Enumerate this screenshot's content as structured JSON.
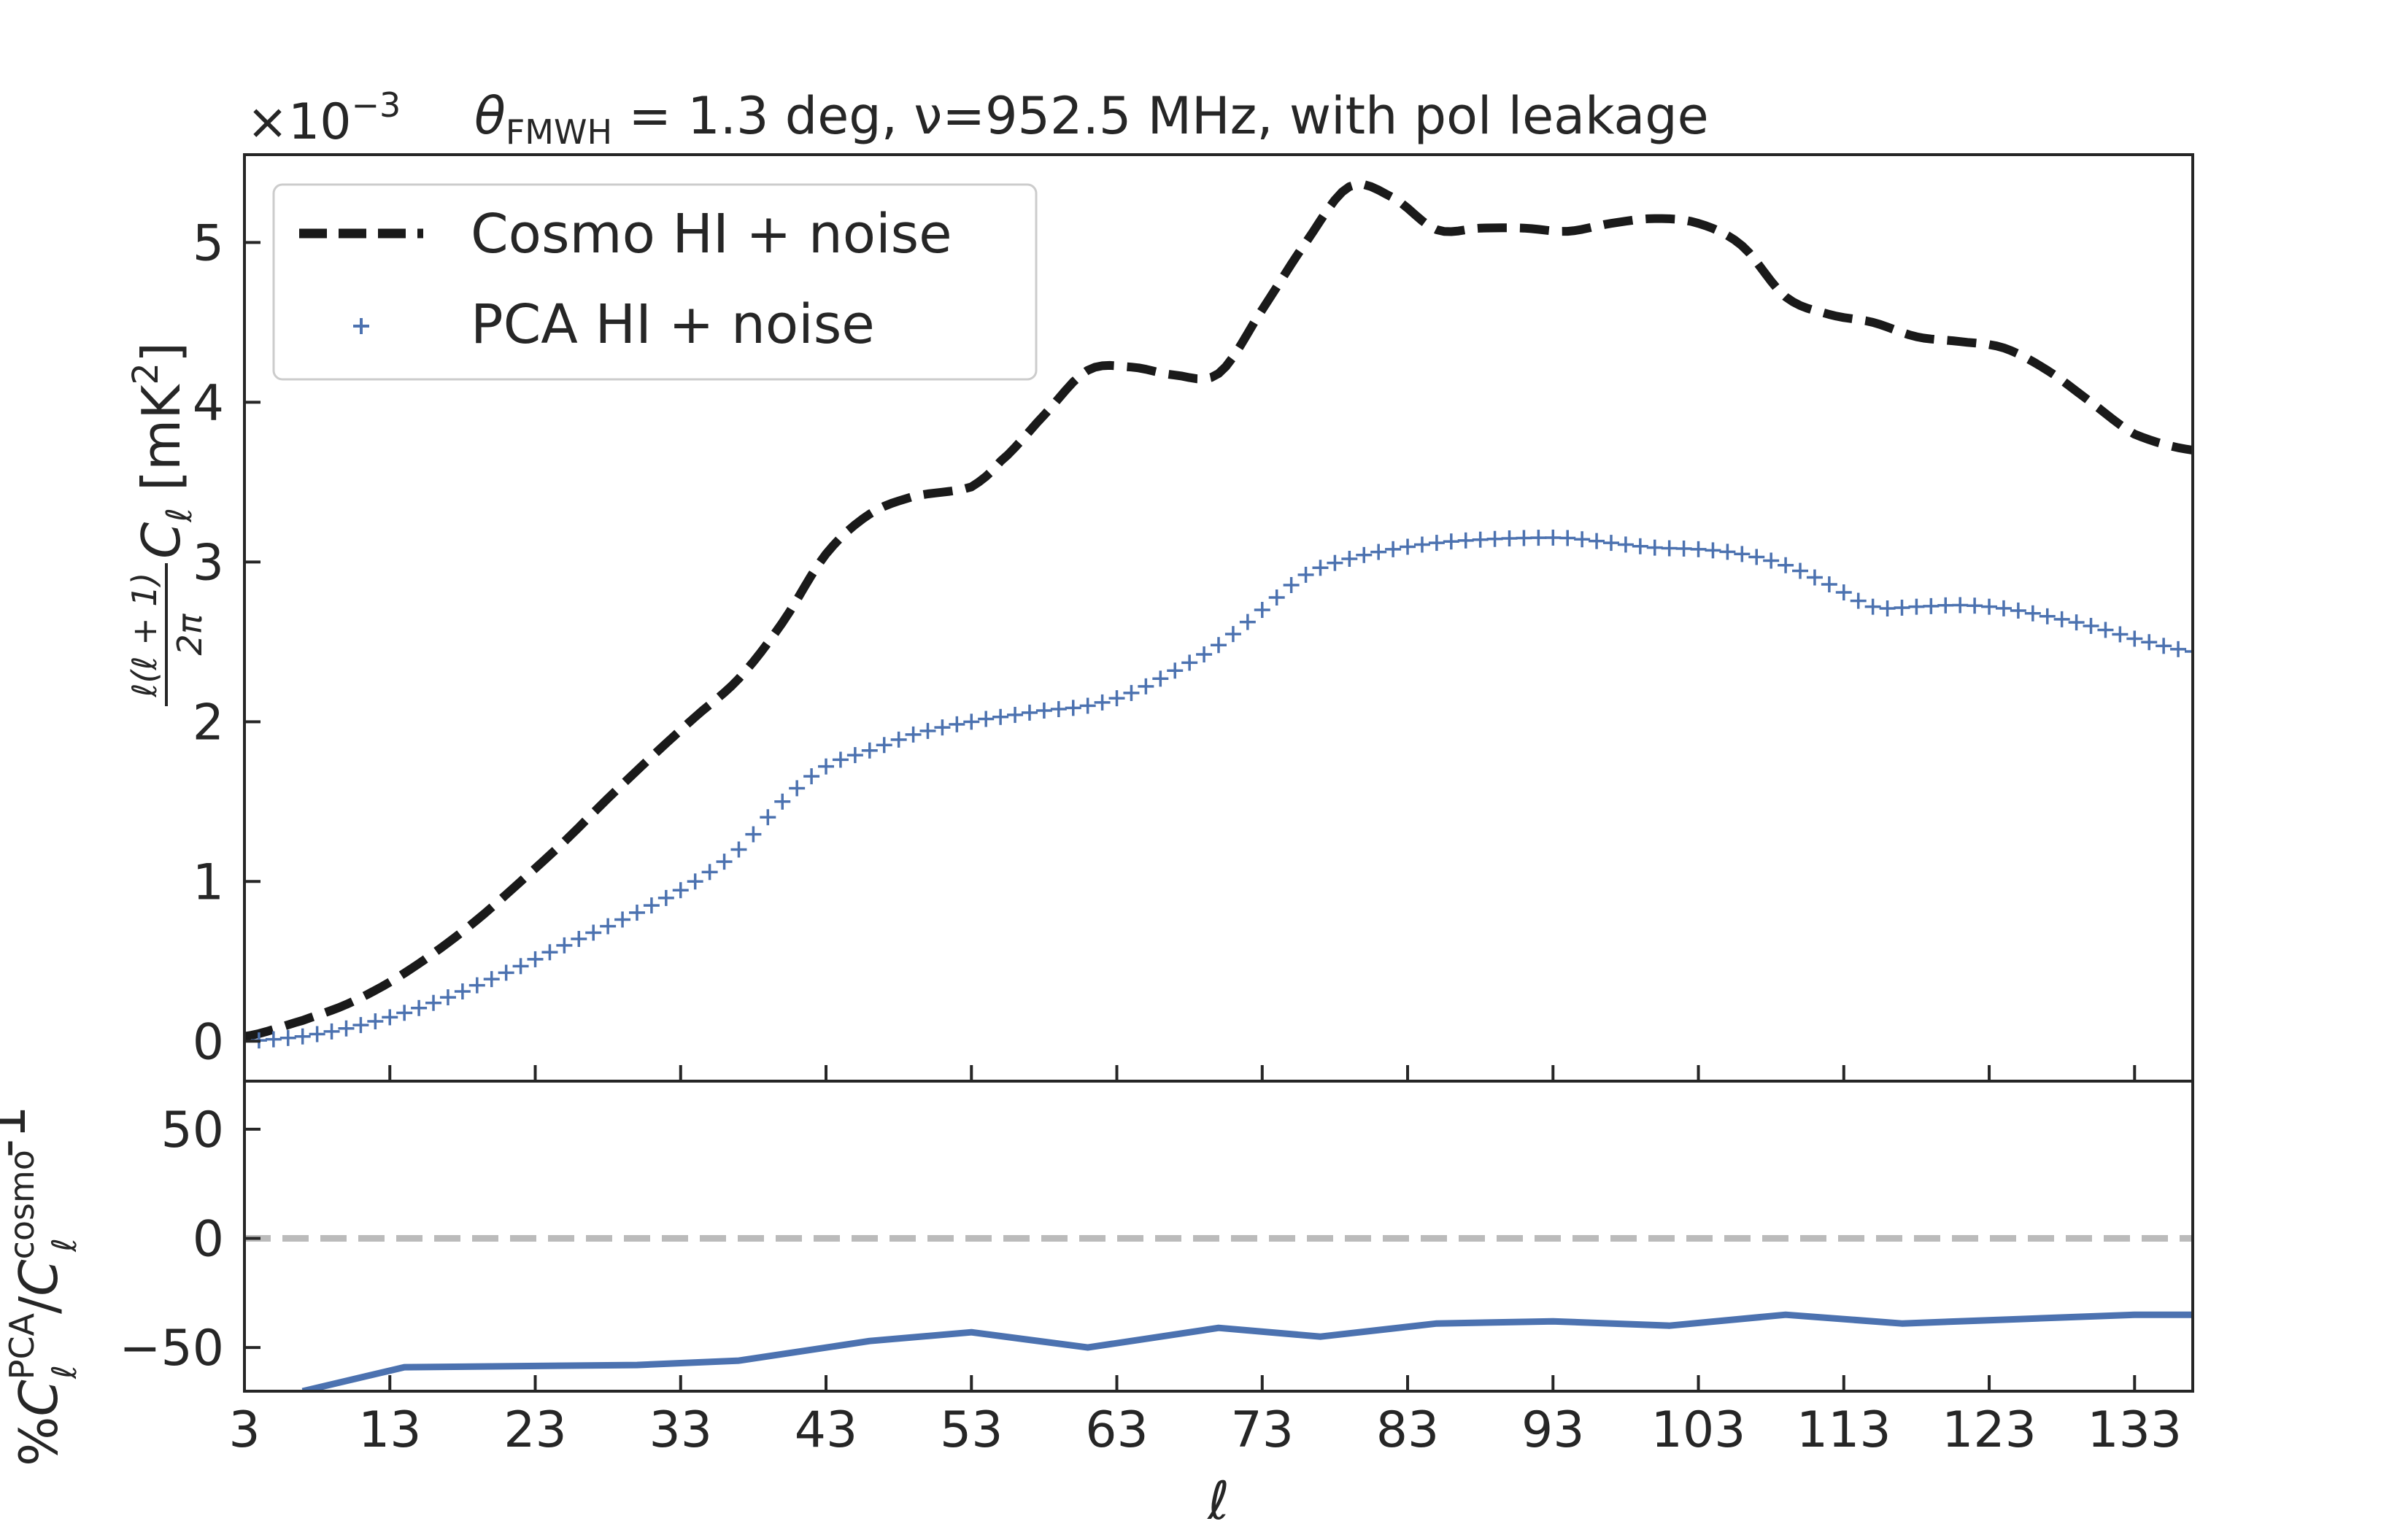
{
  "chart_data": [
    {
      "type": "line",
      "title": "θFMWH = 1.3 deg, ν=952.5 MHz, with pol leakage",
      "title_parts": {
        "theta": "θ",
        "theta_sub": "FMWH",
        "rest": " = 1.3 deg, ν=952.5 MHz, with pol leakage"
      },
      "sci_multiplier": {
        "base": "×10",
        "exponent": "−3"
      },
      "ylabel": {
        "frac_num": "ℓ(ℓ + 1)",
        "frac_den": "2π",
        "symbol": "C",
        "sub": "ℓ",
        "unit_open": " [mK",
        "unit_sup": "2",
        "unit_close": "]"
      },
      "xlim": [
        3,
        137
      ],
      "ylim": [
        -0.25,
        5.55
      ],
      "yticks": [
        0,
        1,
        2,
        3,
        4,
        5
      ],
      "ytick_labels": [
        "0",
        "1",
        "2",
        "3",
        "4",
        "5"
      ],
      "xticks": [
        3,
        13,
        23,
        33,
        43,
        53,
        63,
        73,
        83,
        93,
        103,
        113,
        123,
        133
      ],
      "legend_position": "upper-left",
      "series": [
        {
          "name": "Cosmo HI + noise",
          "style": "dashed",
          "color": "#1a1a1a",
          "x": [
            3,
            7,
            10,
            13,
            16,
            19,
            22,
            25,
            28,
            31,
            34,
            37,
            40,
            43,
            46,
            49,
            53,
            55,
            58,
            61,
            64,
            67,
            70,
            73,
            76,
            79,
            82,
            85,
            88,
            91,
            94,
            97,
            100,
            103,
            106,
            109,
            112,
            115,
            118,
            121,
            124,
            127,
            130,
            133,
            137
          ],
          "y": [
            0.03,
            0.13,
            0.23,
            0.37,
            0.55,
            0.76,
            1.0,
            1.25,
            1.52,
            1.78,
            2.03,
            2.27,
            2.62,
            3.05,
            3.3,
            3.41,
            3.47,
            3.63,
            3.92,
            4.2,
            4.22,
            4.17,
            4.18,
            4.58,
            5.0,
            5.35,
            5.28,
            5.08,
            5.09,
            5.09,
            5.07,
            5.12,
            5.15,
            5.12,
            4.98,
            4.66,
            4.55,
            4.5,
            4.41,
            4.38,
            4.34,
            4.2,
            4.0,
            3.8,
            3.7
          ]
        },
        {
          "name": "PCA HI + noise",
          "style": "plus-markers",
          "color": "#4c72b0",
          "x": [
            3,
            7,
            10,
            13,
            16,
            19,
            22,
            25,
            28,
            31,
            34,
            37,
            40,
            43,
            46,
            49,
            53,
            55,
            58,
            61,
            64,
            67,
            70,
            73,
            76,
            79,
            82,
            85,
            88,
            91,
            94,
            97,
            100,
            103,
            106,
            109,
            112,
            115,
            118,
            121,
            124,
            127,
            130,
            133,
            137
          ],
          "y": [
            0.0,
            0.03,
            0.08,
            0.15,
            0.24,
            0.35,
            0.47,
            0.6,
            0.72,
            0.85,
            1.0,
            1.2,
            1.5,
            1.72,
            1.82,
            1.92,
            2.0,
            2.03,
            2.07,
            2.1,
            2.18,
            2.32,
            2.48,
            2.7,
            2.92,
            3.02,
            3.08,
            3.12,
            3.14,
            3.15,
            3.15,
            3.12,
            3.09,
            3.08,
            3.05,
            2.98,
            2.86,
            2.72,
            2.72,
            2.73,
            2.71,
            2.66,
            2.6,
            2.52,
            2.44
          ]
        }
      ]
    },
    {
      "type": "line",
      "xlabel": "ℓ",
      "ylabel": {
        "prefix": "%",
        "sym1": "C",
        "sup1": "PCA",
        "sub1": "ℓ",
        "slash": "/",
        "sym2": "C",
        "sup2": "cosmo",
        "sub2": "ℓ",
        "suffix": "-1"
      },
      "xlim": [
        3,
        137
      ],
      "ylim": [
        -70,
        72
      ],
      "yticks": [
        -50,
        0,
        50
      ],
      "ytick_labels": [
        "−50",
        "0",
        "50"
      ],
      "xticks": [
        3,
        13,
        23,
        33,
        43,
        53,
        63,
        73,
        83,
        93,
        103,
        113,
        123,
        133
      ],
      "xtick_labels": [
        "3",
        "13",
        "23",
        "33",
        "43",
        "53",
        "63",
        "73",
        "83",
        "93",
        "103",
        "113",
        "123",
        "133"
      ],
      "reference_line": {
        "y": 0,
        "style": "dashed",
        "color": "#bbbbbb"
      },
      "series": [
        {
          "name": "ratio",
          "color": "#4c72b0",
          "x": [
            7,
            14,
            30,
            37,
            46,
            53,
            61,
            64,
            70,
            77,
            85,
            93,
            101,
            109,
            117,
            125,
            133,
            137
          ],
          "y": [
            -70,
            -59,
            -58,
            -56,
            -47,
            -43,
            -50,
            -47,
            -41,
            -45,
            -39,
            -38,
            -40,
            -35,
            -39,
            -37,
            -35,
            -35
          ]
        }
      ]
    }
  ]
}
